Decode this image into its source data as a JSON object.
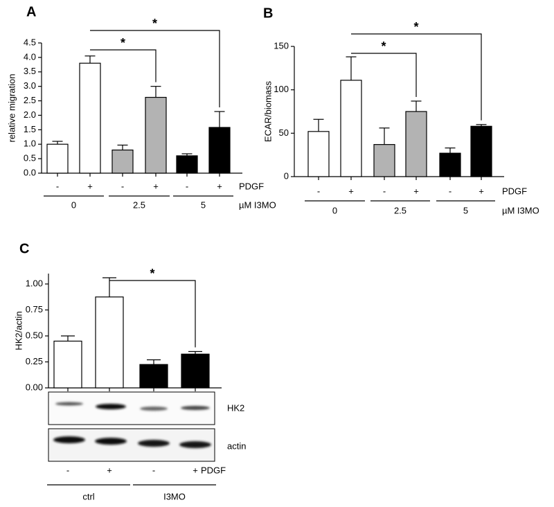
{
  "chart_data": [
    {
      "type": "bar",
      "panel": "A",
      "ylabel": "relative migration",
      "categories": [
        "-",
        "+",
        "-",
        "+",
        "-",
        "+"
      ],
      "values": [
        1.0,
        3.8,
        0.8,
        2.62,
        0.6,
        1.58
      ],
      "errors": [
        0.1,
        0.25,
        0.17,
        0.38,
        0.07,
        0.55
      ],
      "colors": [
        "#ffffff",
        "#ffffff",
        "#b3b3b3",
        "#b3b3b3",
        "#000000",
        "#000000"
      ],
      "groups": [
        "0",
        "2.5",
        "5"
      ],
      "category_title": "PDGF",
      "group_title": "µM I3MO",
      "comparisons": [
        {
          "pair": [
            1,
            3
          ],
          "label": "*"
        },
        {
          "pair": [
            1,
            5
          ],
          "label": "*"
        }
      ],
      "ylim": [
        0,
        4.5
      ],
      "yticks": [
        {
          "value": 0,
          "label": "0.0"
        },
        0.5,
        {
          "value": 1,
          "label": "1.0"
        },
        1.5,
        {
          "value": 2,
          "label": "2.0"
        },
        2.5,
        {
          "value": 3,
          "label": "3.0"
        },
        3.5,
        {
          "value": 4,
          "label": "4.0"
        },
        4.5
      ]
    },
    {
      "type": "bar",
      "panel": "B",
      "ylabel": "ECAR/biomass",
      "categories": [
        "-",
        "+",
        "-",
        "+",
        "-",
        "+"
      ],
      "values": [
        52,
        111,
        37,
        75,
        27,
        58
      ],
      "errors": [
        14,
        27,
        19,
        12,
        6,
        2
      ],
      "colors": [
        "#ffffff",
        "#ffffff",
        "#b3b3b3",
        "#b3b3b3",
        "#000000",
        "#000000"
      ],
      "groups": [
        "0",
        "2.5",
        "5"
      ],
      "category_title": "PDGF",
      "group_title": "µM I3MO",
      "comparisons": [
        {
          "pair": [
            1,
            3
          ],
          "label": "*"
        },
        {
          "pair": [
            1,
            5
          ],
          "label": "*"
        }
      ],
      "ylim": [
        0,
        150
      ],
      "yticks": [
        0,
        50,
        100,
        150
      ]
    },
    {
      "type": "bar",
      "panel": "C",
      "ylabel": "HK2/actin",
      "categories": [
        "-",
        "+",
        "-",
        "+"
      ],
      "values": [
        0.45,
        0.875,
        0.225,
        0.325
      ],
      "errors": [
        0.05,
        0.185,
        0.045,
        0.025
      ],
      "colors": [
        "#ffffff",
        "#ffffff",
        "#000000",
        "#000000"
      ],
      "groups": [
        "ctrl",
        "I3MO"
      ],
      "category_title": "PDGF",
      "blots": [
        "HK2",
        "actin"
      ],
      "comparisons": [
        {
          "pair": [
            1,
            3
          ],
          "label": "*"
        }
      ],
      "ylim": [
        0,
        1.1
      ],
      "yticks": [
        {
          "value": 0,
          "label": "0.00"
        },
        0.25,
        {
          "value": 0.5,
          "label": "0.50"
        },
        0.75,
        {
          "value": 1,
          "label": "1.00"
        }
      ]
    }
  ]
}
